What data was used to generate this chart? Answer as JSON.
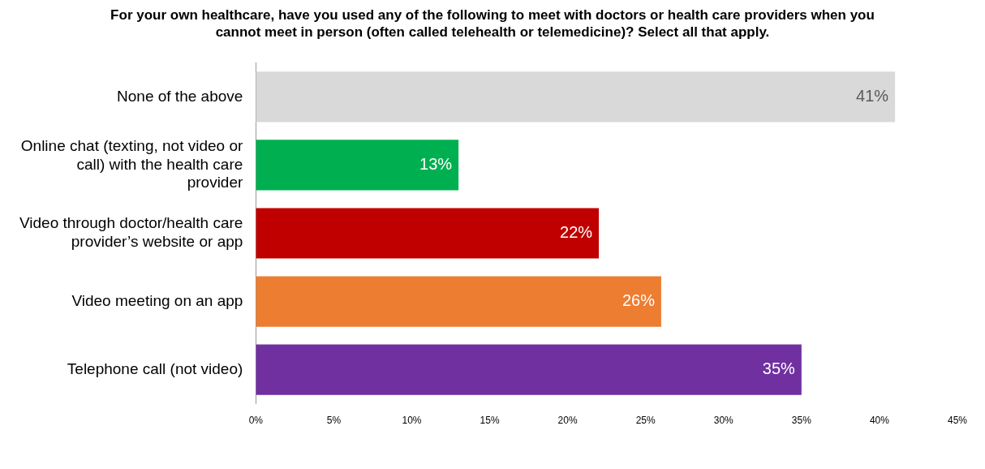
{
  "chart_data": {
    "type": "bar",
    "orientation": "horizontal",
    "title": "For your own healthcare, have you used any of the following to meet with doctors or health care providers when you cannot meet in person (often called telehealth or telemedicine)? Select all that apply.",
    "categories": [
      "None of the above",
      "Online chat (texting, not video or call) with the health care provider",
      "Video through doctor/health care provider’s website or app",
      "Video meeting on an app",
      "Telephone call (not video)"
    ],
    "values": [
      41,
      13,
      22,
      26,
      35
    ],
    "colors": [
      "#d9d9d9",
      "#00b050",
      "#c00000",
      "#ed7d31",
      "#7030a0"
    ],
    "value_labels": [
      "41%",
      "13%",
      "22%",
      "26%",
      "35%"
    ],
    "xlim": [
      0,
      45
    ],
    "xticks": [
      {
        "value": 0,
        "label": "0%"
      },
      {
        "value": 5,
        "label": "5%"
      },
      {
        "value": 10,
        "label": "10%"
      },
      {
        "value": 15,
        "label": "15%"
      },
      {
        "value": 20,
        "label": "20%"
      },
      {
        "value": 25,
        "label": "25%"
      },
      {
        "value": 30,
        "label": "30%"
      },
      {
        "value": 35,
        "label": "35%"
      },
      {
        "value": 40,
        "label": "40%"
      },
      {
        "value": 45,
        "label": "45%"
      }
    ],
    "grid": false,
    "legend": false
  }
}
